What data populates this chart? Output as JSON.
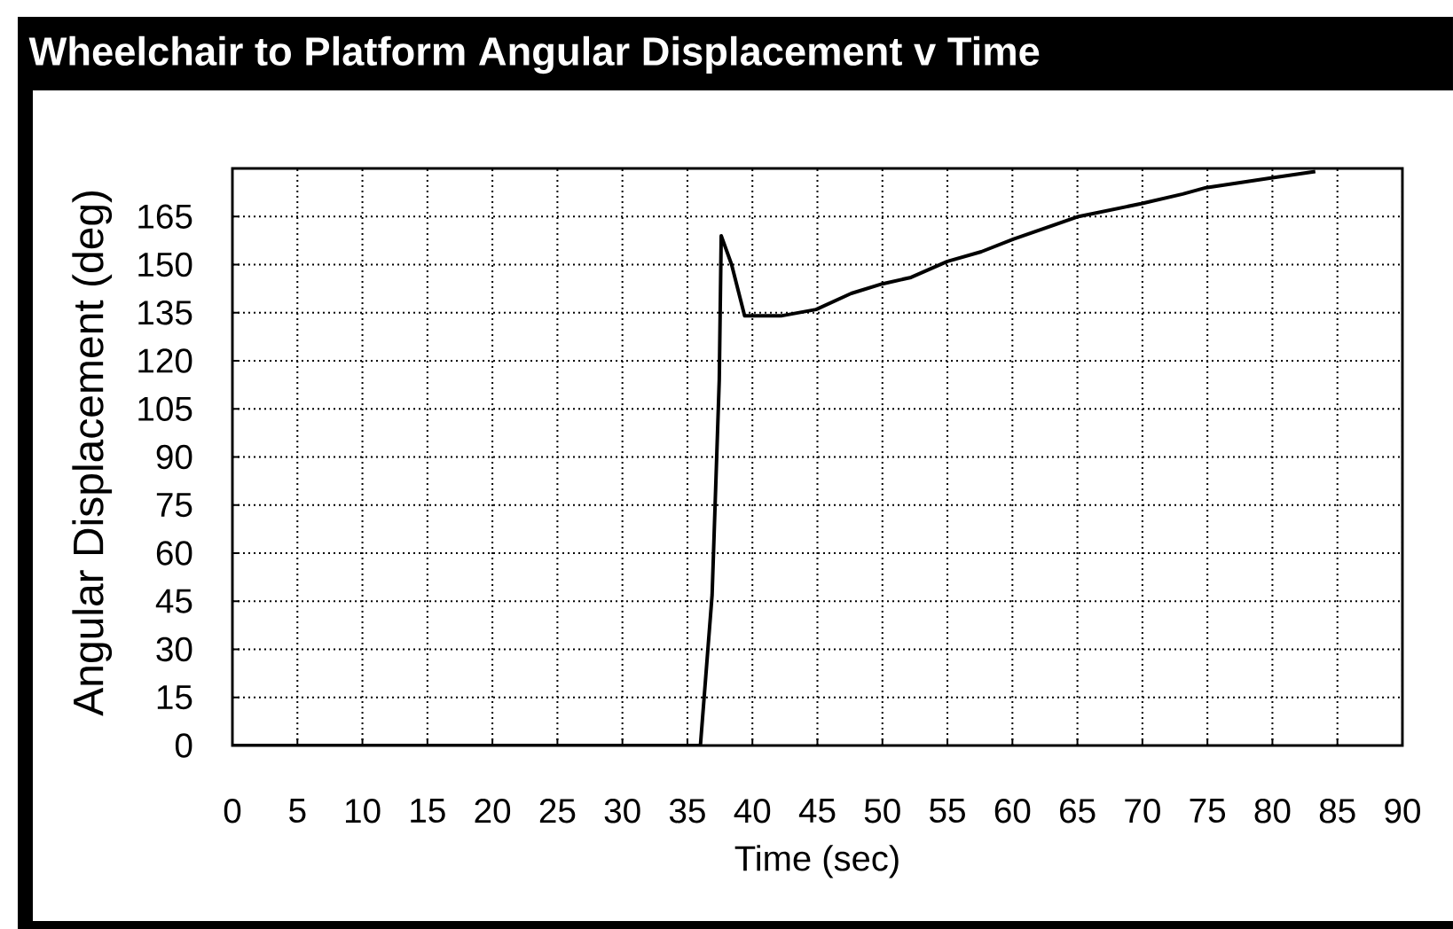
{
  "chart_data": {
    "type": "line",
    "title": "Wheelchair to Platform Angular Displacement v Time",
    "xlabel": "Time (sec)",
    "ylabel": "Angular Displacement (deg)",
    "x": [
      0,
      36.0,
      36.9,
      37.45,
      37.6,
      38.4,
      39.4,
      42.2,
      44.9,
      47.6,
      50.0,
      52.2,
      55.0,
      57.6,
      60.1,
      65.1,
      69.9,
      73.1,
      74.9,
      79.9,
      83.3
    ],
    "values": [
      0,
      0,
      47,
      114,
      159,
      150,
      134,
      134,
      136,
      141,
      144,
      146,
      151,
      154,
      158,
      165,
      169,
      172,
      174,
      177,
      179
    ],
    "color": "#000000",
    "line_style": "solid",
    "grid": true,
    "xlim": [
      0,
      90
    ],
    "ylim": [
      0,
      180
    ],
    "xticks": [
      0,
      5,
      10,
      15,
      20,
      25,
      30,
      35,
      40,
      45,
      50,
      55,
      60,
      65,
      70,
      75,
      80,
      85,
      90
    ],
    "yticks": [
      0,
      15,
      30,
      45,
      60,
      75,
      90,
      105,
      120,
      135,
      150,
      165
    ]
  }
}
